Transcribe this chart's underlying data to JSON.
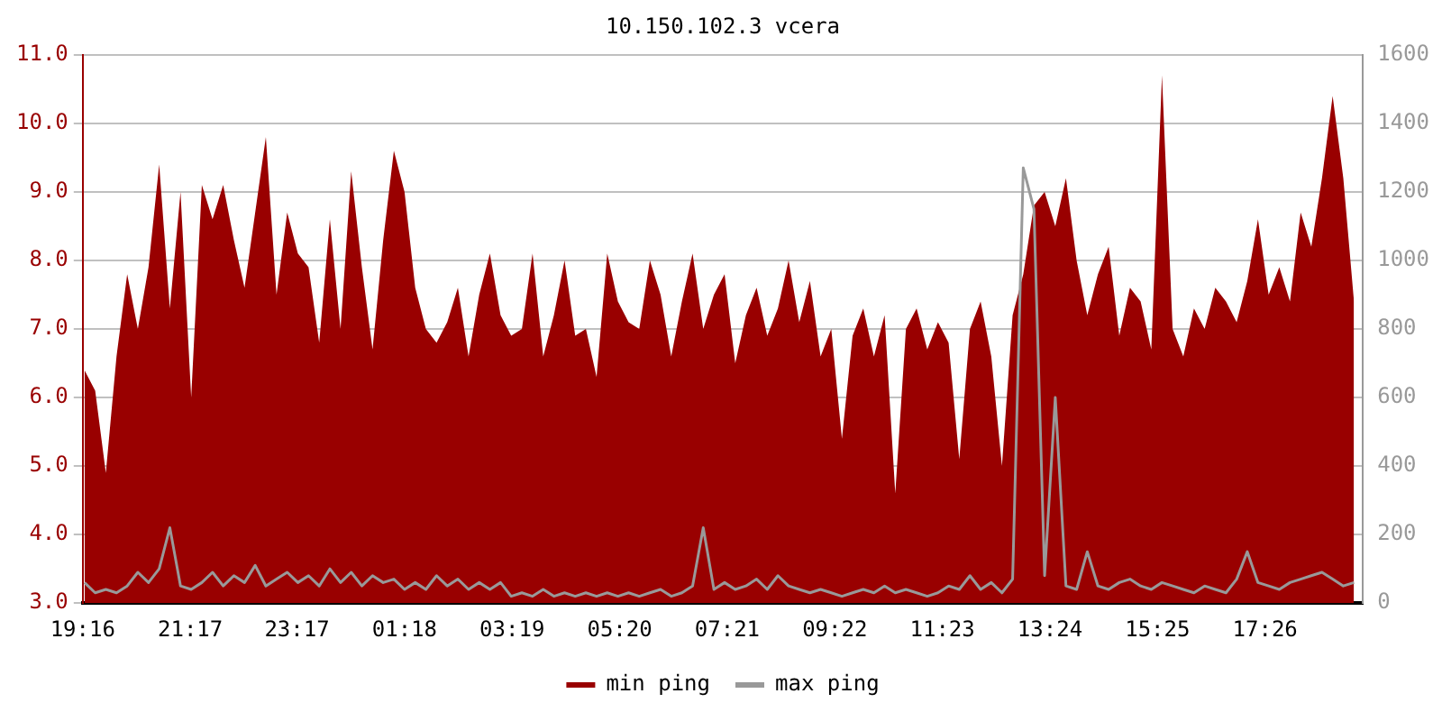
{
  "chart_data": {
    "type": "line",
    "title": "10.150.102.3 vcera",
    "x": [
      "--01-01T19:18",
      "--01-01T19:30",
      "--01-01T19:42",
      "--01-01T19:54",
      "--01-01T20:06",
      "--01-01T20:18",
      "--01-01T20:30",
      "--01-01T20:42",
      "--01-01T20:54",
      "--01-01T21:06",
      "--01-01T21:18",
      "--01-01T21:30",
      "--01-01T21:42",
      "--01-01T21:54",
      "--01-01T22:06",
      "--01-01T22:18",
      "--01-01T22:30",
      "--01-01T22:42",
      "--01-01T22:54",
      "--01-01T23:06",
      "--01-01T23:18",
      "--01-01T23:30",
      "--01-01T23:42",
      "--01-01T23:54",
      "--01-02T00:06",
      "--01-02T00:18",
      "--01-02T00:30",
      "--01-02T00:42",
      "--01-02T00:54",
      "--01-02T01:06",
      "--01-02T01:18",
      "--01-02T01:30",
      "--01-02T01:42",
      "--01-02T01:54",
      "--01-02T02:06",
      "--01-02T02:18",
      "--01-02T02:30",
      "--01-02T02:42",
      "--01-02T02:54",
      "--01-02T03:06",
      "--01-02T03:18",
      "--01-02T03:30",
      "--01-02T03:42",
      "--01-02T03:54",
      "--01-02T04:06",
      "--01-02T04:18",
      "--01-02T04:30",
      "--01-02T04:42",
      "--01-02T04:54",
      "--01-02T05:06",
      "--01-02T05:18",
      "--01-02T05:30",
      "--01-02T05:42",
      "--01-02T05:54",
      "--01-02T06:06",
      "--01-02T06:18",
      "--01-02T06:30",
      "--01-02T06:42",
      "--01-02T06:54",
      "--01-02T07:06",
      "--01-02T07:18",
      "--01-02T07:30",
      "--01-02T07:42",
      "--01-02T07:54",
      "--01-02T08:06",
      "--01-02T08:18",
      "--01-02T08:30",
      "--01-02T08:42",
      "--01-02T08:54",
      "--01-02T09:06",
      "--01-02T09:18",
      "--01-02T09:30",
      "--01-02T09:42",
      "--01-02T09:54",
      "--01-02T10:06",
      "--01-02T10:18",
      "--01-02T10:30",
      "--01-02T10:42",
      "--01-02T10:54",
      "--01-02T11:06",
      "--01-02T11:18",
      "--01-02T11:30",
      "--01-02T11:42",
      "--01-02T11:54",
      "--01-02T12:06",
      "--01-02T12:18",
      "--01-02T12:30",
      "--01-02T12:42",
      "--01-02T12:54",
      "--01-02T13:06",
      "--01-02T13:18",
      "--01-02T13:30",
      "--01-02T13:42",
      "--01-02T13:54",
      "--01-02T14:06",
      "--01-02T14:18",
      "--01-02T14:30",
      "--01-02T14:42",
      "--01-02T14:54",
      "--01-02T15:06",
      "--01-02T15:18",
      "--01-02T15:30",
      "--01-02T15:42",
      "--01-02T15:54",
      "--01-02T16:06",
      "--01-02T16:18",
      "--01-02T16:30",
      "--01-02T16:42",
      "--01-02T16:54",
      "--01-02T17:06",
      "--01-02T17:18",
      "--01-02T17:30",
      "--01-02T17:42",
      "--01-02T17:54",
      "--01-02T18:06",
      "--01-02T18:18",
      "--01-02T18:30",
      "--01-02T18:42",
      "--01-02T18:54",
      "--01-02T19:06"
    ],
    "series": [
      {
        "name": "min ping",
        "type": "area",
        "color": "#990000",
        "values": [
          6.4,
          6.1,
          4.9,
          6.6,
          7.8,
          7.0,
          7.9,
          9.4,
          7.3,
          9.0,
          6.0,
          9.1,
          8.6,
          9.1,
          8.3,
          7.6,
          8.7,
          9.8,
          7.5,
          8.7,
          8.1,
          7.9,
          6.8,
          8.6,
          7.0,
          9.3,
          7.9,
          6.7,
          8.3,
          9.6,
          9.0,
          7.6,
          7.0,
          6.8,
          7.1,
          7.6,
          6.6,
          7.5,
          8.1,
          7.2,
          6.9,
          7.0,
          8.1,
          6.6,
          7.2,
          8.0,
          6.9,
          7.0,
          6.3,
          8.1,
          7.4,
          7.1,
          7.0,
          8.0,
          7.5,
          6.6,
          7.4,
          8.1,
          7.0,
          7.5,
          7.8,
          6.5,
          7.2,
          7.6,
          6.9,
          7.3,
          8.0,
          7.1,
          7.7,
          6.6,
          7.0,
          5.4,
          6.9,
          7.3,
          6.6,
          7.2,
          4.6,
          7.0,
          7.3,
          6.7,
          7.1,
          6.8,
          5.1,
          7.0,
          7.4,
          6.6,
          5.0,
          7.2,
          7.8,
          8.8,
          9.0,
          8.5,
          9.2,
          8.0,
          7.2,
          7.8,
          8.2,
          6.9,
          7.6,
          7.4,
          6.7,
          10.7,
          7.0,
          6.6,
          7.3,
          7.0,
          7.6,
          7.4,
          7.1,
          7.7,
          8.6,
          7.5,
          7.9,
          7.4,
          8.7,
          8.2,
          9.2,
          10.4,
          9.2,
          7.4
        ]
      },
      {
        "name": "max ping",
        "type": "line",
        "axis": "y2",
        "color": "#999999",
        "values": [
          60,
          30,
          40,
          30,
          50,
          90,
          60,
          100,
          220,
          50,
          40,
          60,
          90,
          50,
          80,
          60,
          110,
          50,
          70,
          90,
          60,
          80,
          50,
          100,
          60,
          90,
          50,
          80,
          60,
          70,
          40,
          60,
          40,
          80,
          50,
          70,
          40,
          60,
          40,
          60,
          20,
          30,
          20,
          40,
          20,
          30,
          20,
          30,
          20,
          30,
          20,
          30,
          20,
          30,
          40,
          20,
          30,
          50,
          220,
          40,
          60,
          40,
          50,
          70,
          40,
          80,
          50,
          40,
          30,
          40,
          30,
          20,
          30,
          40,
          30,
          50,
          30,
          40,
          30,
          20,
          30,
          50,
          40,
          80,
          40,
          60,
          30,
          70,
          1270,
          1150,
          80,
          600,
          50,
          40,
          150,
          50,
          40,
          60,
          70,
          50,
          40,
          60,
          50,
          40,
          30,
          50,
          40,
          30,
          70,
          150,
          60,
          50,
          40,
          60,
          70,
          80,
          90,
          70,
          50,
          60
        ]
      }
    ],
    "xlim": [
      "--01-01T19:16",
      "--01-02T19:16"
    ],
    "xticks": [
      {
        "value": "--01-01T19:16",
        "label": "19:16"
      },
      {
        "value": "--01-01T21:17",
        "label": "21:17"
      },
      {
        "value": "--01-01T23:17",
        "label": "23:17"
      },
      {
        "value": "--01-02T01:18",
        "label": "01:18"
      },
      {
        "value": "--01-02T03:19",
        "label": "03:19"
      },
      {
        "value": "--01-02T05:20",
        "label": "05:20"
      },
      {
        "value": "--01-02T07:21",
        "label": "07:21"
      },
      {
        "value": "--01-02T09:22",
        "label": "09:22"
      },
      {
        "value": "--01-02T11:23",
        "label": "11:23"
      },
      {
        "value": "--01-02T13:24",
        "label": "13:24"
      },
      {
        "value": "--01-02T15:25",
        "label": "15:25"
      },
      {
        "value": "--01-02T17:26",
        "label": "17:26"
      }
    ],
    "ylim": [
      3,
      11
    ],
    "yticks": [
      {
        "value": 3,
        "label": "3.0"
      },
      {
        "value": 4,
        "label": "4.0"
      },
      {
        "value": 5,
        "label": "5.0"
      },
      {
        "value": 6,
        "label": "6.0"
      },
      {
        "value": 7,
        "label": "7.0"
      },
      {
        "value": 8,
        "label": "8.0"
      },
      {
        "value": 9,
        "label": "9.0"
      },
      {
        "value": 10,
        "label": "10.0"
      },
      {
        "value": 11,
        "label": "11.0"
      }
    ],
    "y2lim": [
      0,
      1600
    ],
    "y2ticks": [
      0,
      200,
      400,
      600,
      800,
      1000,
      1200,
      1400,
      1600
    ],
    "grid": "y",
    "legend": "bottom",
    "marker": "none"
  }
}
